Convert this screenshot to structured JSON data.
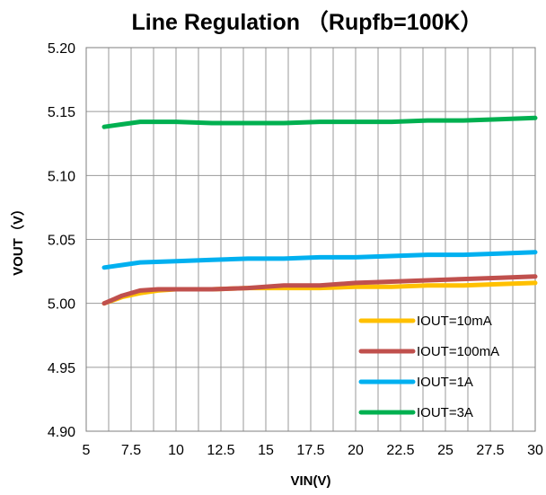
{
  "chart_data": {
    "type": "line",
    "title": "Line Regulation （Rupfb=100K）",
    "xlabel": "VIN(V)",
    "ylabel": "VOUT（V）",
    "xlim": [
      5,
      30
    ],
    "ylim": [
      4.9,
      5.2
    ],
    "xticks": [
      "5",
      "7.5",
      "10",
      "12.5",
      "15",
      "17.5",
      "20",
      "22.5",
      "25",
      "27.5",
      "30"
    ],
    "yticks": [
      "5.20",
      "5.15",
      "5.10",
      "5.05",
      "5.00",
      "4.95",
      "4.90"
    ],
    "x_minor_step": 1.25,
    "y_major_step": 0.05,
    "grid": true,
    "legend_position": "lower-right",
    "series": [
      {
        "name": "IOUT=10mA",
        "color": "#FFC000",
        "x": [
          6,
          7,
          8,
          9,
          10,
          12,
          14,
          16,
          18,
          20,
          22,
          24,
          26,
          28,
          30
        ],
        "y": [
          5.0,
          5.005,
          5.008,
          5.01,
          5.011,
          5.011,
          5.012,
          5.012,
          5.012,
          5.013,
          5.013,
          5.014,
          5.014,
          5.015,
          5.016
        ]
      },
      {
        "name": "IOUT=100mA",
        "color": "#C0504D",
        "x": [
          6,
          7,
          8,
          9,
          10,
          12,
          14,
          16,
          18,
          20,
          22,
          24,
          26,
          28,
          30
        ],
        "y": [
          5.0,
          5.006,
          5.01,
          5.011,
          5.011,
          5.011,
          5.012,
          5.014,
          5.014,
          5.016,
          5.017,
          5.018,
          5.019,
          5.02,
          5.021
        ]
      },
      {
        "name": "IOUT=1A",
        "color": "#00B0F0",
        "x": [
          6,
          7,
          8,
          10,
          12,
          14,
          16,
          18,
          20,
          22,
          24,
          26,
          28,
          30
        ],
        "y": [
          5.028,
          5.03,
          5.032,
          5.033,
          5.034,
          5.035,
          5.035,
          5.036,
          5.036,
          5.037,
          5.038,
          5.038,
          5.039,
          5.04
        ]
      },
      {
        "name": "IOUT=3A",
        "color": "#00B050",
        "x": [
          6,
          7,
          8,
          9,
          10,
          12,
          14,
          16,
          18,
          20,
          22,
          24,
          26,
          28,
          30
        ],
        "y": [
          5.138,
          5.14,
          5.142,
          5.142,
          5.142,
          5.141,
          5.141,
          5.141,
          5.142,
          5.142,
          5.142,
          5.143,
          5.143,
          5.144,
          5.145
        ]
      }
    ]
  }
}
